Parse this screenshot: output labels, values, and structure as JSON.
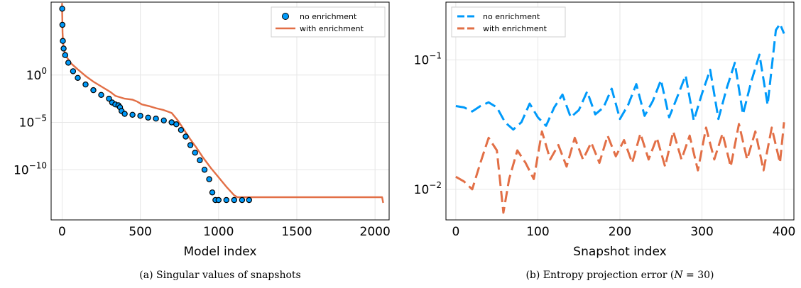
{
  "chart_data": [
    {
      "type": "scatter+line",
      "caption": "(a) Singular values of snapshots",
      "xlabel": "Model index",
      "ylabel": "",
      "yscale": "log",
      "xlim": [
        -70,
        2090
      ],
      "ylim_exp": [
        -15.3,
        7.7
      ],
      "xticks": [
        0,
        500,
        1000,
        1500,
        2000
      ],
      "yticks": [
        {
          "base": "10",
          "exp": "0",
          "value_exp": 0
        },
        {
          "base": "10",
          "exp": "−5",
          "value_exp": -5
        },
        {
          "base": "10",
          "exp": "−10",
          "value_exp": -10
        }
      ],
      "grid": true,
      "legend_position": "top-right",
      "series": [
        {
          "name": "no enrichment",
          "style": "markers",
          "color": "#009AFA",
          "points_log10": [
            [
              1,
              7.0
            ],
            [
              2,
              5.3
            ],
            [
              5,
              3.6
            ],
            [
              10,
              2.8
            ],
            [
              20,
              2.1
            ],
            [
              40,
              1.3
            ],
            [
              70,
              0.4
            ],
            [
              100,
              -0.3
            ],
            [
              150,
              -1.0
            ],
            [
              200,
              -1.6
            ],
            [
              250,
              -2.1
            ],
            [
              300,
              -2.5
            ],
            [
              320,
              -2.9
            ],
            [
              340,
              -3.1
            ],
            [
              360,
              -3.2
            ],
            [
              370,
              -3.4
            ],
            [
              380,
              -3.8
            ],
            [
              400,
              -4.1
            ],
            [
              450,
              -4.2
            ],
            [
              500,
              -4.3
            ],
            [
              550,
              -4.5
            ],
            [
              600,
              -4.6
            ],
            [
              650,
              -4.8
            ],
            [
              700,
              -5.0
            ],
            [
              730,
              -5.2
            ],
            [
              760,
              -5.8
            ],
            [
              790,
              -6.5
            ],
            [
              820,
              -7.4
            ],
            [
              850,
              -8.2
            ],
            [
              880,
              -9.0
            ],
            [
              910,
              -10.0
            ],
            [
              940,
              -11.0
            ],
            [
              960,
              -12.4
            ],
            [
              980,
              -13.2
            ],
            [
              1000,
              -13.2
            ],
            [
              1050,
              -13.2
            ],
            [
              1100,
              -13.2
            ],
            [
              1150,
              -13.2
            ],
            [
              1195,
              -13.2
            ]
          ]
        },
        {
          "name": "with enrichment",
          "style": "line",
          "color": "#E26F46",
          "points_log10": [
            [
              0,
              7.6
            ],
            [
              1,
              6.5
            ],
            [
              3,
              4.5
            ],
            [
              6,
              3.5
            ],
            [
              12,
              2.7
            ],
            [
              25,
              2.0
            ],
            [
              60,
              1.2
            ],
            [
              100,
              0.6
            ],
            [
              150,
              -0.1
            ],
            [
              200,
              -0.7
            ],
            [
              260,
              -1.3
            ],
            [
              310,
              -1.8
            ],
            [
              340,
              -2.2
            ],
            [
              400,
              -2.5
            ],
            [
              450,
              -2.6
            ],
            [
              480,
              -2.8
            ],
            [
              510,
              -3.1
            ],
            [
              560,
              -3.3
            ],
            [
              600,
              -3.5
            ],
            [
              650,
              -3.7
            ],
            [
              700,
              -4.0
            ],
            [
              740,
              -4.8
            ],
            [
              780,
              -5.8
            ],
            [
              820,
              -6.8
            ],
            [
              860,
              -7.7
            ],
            [
              900,
              -8.7
            ],
            [
              950,
              -9.8
            ],
            [
              1000,
              -10.8
            ],
            [
              1050,
              -11.8
            ],
            [
              1100,
              -12.7
            ],
            [
              1120,
              -12.9
            ],
            [
              1500,
              -12.9
            ],
            [
              2000,
              -12.9
            ],
            [
              2045,
              -12.9
            ],
            [
              2052,
              -13.5
            ]
          ]
        }
      ]
    },
    {
      "type": "line",
      "caption": "(b) Entropy projection error (N = 30)",
      "caption_parts": {
        "pre": "(b) Entropy projection error (",
        "var": "N",
        "post": " = 30)"
      },
      "xlabel": "Snapshot index",
      "ylabel": "",
      "yscale": "log",
      "xlim": [
        -12,
        412
      ],
      "ylim": [
        0.0058,
        0.28
      ],
      "xticks": [
        0,
        100,
        200,
        300,
        400
      ],
      "yticks": [
        {
          "base": "10",
          "exp": "−1",
          "value": 0.1
        },
        {
          "base": "10",
          "exp": "−2",
          "value": 0.01
        }
      ],
      "grid": true,
      "legend_position": "top-left",
      "series": [
        {
          "name": "no enrichment",
          "style": "dashed",
          "color": "#009AFA",
          "points": [
            [
              0,
              0.044
            ],
            [
              10,
              0.043
            ],
            [
              20,
              0.04
            ],
            [
              30,
              0.044
            ],
            [
              40,
              0.047
            ],
            [
              50,
              0.043
            ],
            [
              60,
              0.033
            ],
            [
              70,
              0.029
            ],
            [
              80,
              0.033
            ],
            [
              90,
              0.046
            ],
            [
              100,
              0.036
            ],
            [
              110,
              0.031
            ],
            [
              120,
              0.043
            ],
            [
              130,
              0.054
            ],
            [
              140,
              0.036
            ],
            [
              150,
              0.041
            ],
            [
              160,
              0.057
            ],
            [
              170,
              0.038
            ],
            [
              180,
              0.043
            ],
            [
              190,
              0.06
            ],
            [
              200,
              0.035
            ],
            [
              210,
              0.045
            ],
            [
              220,
              0.065
            ],
            [
              230,
              0.037
            ],
            [
              240,
              0.048
            ],
            [
              250,
              0.07
            ],
            [
              260,
              0.036
            ],
            [
              270,
              0.052
            ],
            [
              280,
              0.076
            ],
            [
              290,
              0.034
            ],
            [
              300,
              0.055
            ],
            [
              310,
              0.084
            ],
            [
              320,
              0.035
            ],
            [
              330,
              0.06
            ],
            [
              340,
              0.095
            ],
            [
              350,
              0.038
            ],
            [
              360,
              0.068
            ],
            [
              370,
              0.11
            ],
            [
              380,
              0.045
            ],
            [
              390,
              0.17
            ],
            [
              395,
              0.19
            ],
            [
              400,
              0.16
            ]
          ]
        },
        {
          "name": "with enrichment",
          "style": "dashed",
          "color": "#E26F46",
          "points": [
            [
              0,
              0.0125
            ],
            [
              10,
              0.0115
            ],
            [
              20,
              0.01
            ],
            [
              30,
              0.016
            ],
            [
              40,
              0.025
            ],
            [
              50,
              0.02
            ],
            [
              58,
              0.0066
            ],
            [
              65,
              0.012
            ],
            [
              75,
              0.02
            ],
            [
              85,
              0.016
            ],
            [
              95,
              0.012
            ],
            [
              105,
              0.028
            ],
            [
              115,
              0.017
            ],
            [
              125,
              0.022
            ],
            [
              135,
              0.015
            ],
            [
              145,
              0.025
            ],
            [
              155,
              0.017
            ],
            [
              165,
              0.023
            ],
            [
              175,
              0.016
            ],
            [
              185,
              0.026
            ],
            [
              195,
              0.018
            ],
            [
              205,
              0.024
            ],
            [
              215,
              0.016
            ],
            [
              225,
              0.027
            ],
            [
              235,
              0.017
            ],
            [
              245,
              0.025
            ],
            [
              255,
              0.015
            ],
            [
              265,
              0.028
            ],
            [
              275,
              0.017
            ],
            [
              285,
              0.026
            ],
            [
              295,
              0.014
            ],
            [
              305,
              0.03
            ],
            [
              315,
              0.017
            ],
            [
              325,
              0.027
            ],
            [
              335,
              0.015
            ],
            [
              345,
              0.032
            ],
            [
              355,
              0.017
            ],
            [
              365,
              0.028
            ],
            [
              375,
              0.014
            ],
            [
              385,
              0.03
            ],
            [
              395,
              0.016
            ],
            [
              400,
              0.033
            ]
          ]
        }
      ]
    }
  ]
}
